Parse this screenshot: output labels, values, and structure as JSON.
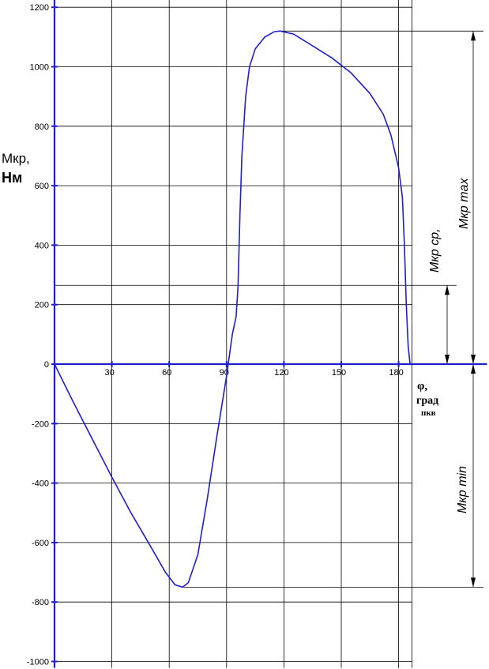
{
  "chart_data": {
    "type": "line",
    "x_range": [
      0,
      187
    ],
    "y_range": [
      -1000,
      1200
    ],
    "x_ticks": [
      30,
      60,
      90,
      120,
      150,
      180
    ],
    "y_ticks": [
      1200,
      1000,
      800,
      600,
      400,
      200,
      0,
      -200,
      -400,
      -600,
      -800,
      -1000
    ],
    "x_tick_labels": [
      "30",
      "60",
      "90",
      "120",
      "150",
      "180"
    ],
    "y_tick_labels": [
      "1200",
      "1000",
      "800",
      "600",
      "400",
      "200",
      "0",
      "-200",
      "-400",
      "-600",
      "-800",
      "-1000"
    ],
    "ylabel_line1": "Мкр,",
    "ylabel_line2": "Нм",
    "xlabel_line1": "φ,",
    "xlabel_line2": "град",
    "xlabel_line3": "пкв",
    "series": [
      {
        "color": "#1f1fcc",
        "points": [
          [
            0,
            0
          ],
          [
            10,
            -130
          ],
          [
            20,
            -255
          ],
          [
            30,
            -380
          ],
          [
            40,
            -500
          ],
          [
            50,
            -610
          ],
          [
            58,
            -700
          ],
          [
            63,
            -742
          ],
          [
            67,
            -750
          ],
          [
            70,
            -735
          ],
          [
            75,
            -640
          ],
          [
            80,
            -450
          ],
          [
            85,
            -240
          ],
          [
            90,
            -40
          ],
          [
            93,
            100
          ],
          [
            95,
            160
          ],
          [
            96,
            260
          ],
          [
            97,
            500
          ],
          [
            98,
            700
          ],
          [
            100,
            900
          ],
          [
            102,
            1000
          ],
          [
            105,
            1060
          ],
          [
            110,
            1100
          ],
          [
            115,
            1118
          ],
          [
            118,
            1120
          ],
          [
            125,
            1110
          ],
          [
            135,
            1070
          ],
          [
            145,
            1030
          ],
          [
            155,
            980
          ],
          [
            165,
            910
          ],
          [
            172,
            840
          ],
          [
            176,
            770
          ],
          [
            180,
            660
          ],
          [
            182,
            560
          ],
          [
            183,
            400
          ],
          [
            184,
            200
          ],
          [
            185,
            60
          ],
          [
            186,
            0
          ]
        ]
      }
    ],
    "reference_lines": {
      "Mkr_max": 1120,
      "Mkr_avg": 265,
      "Mkr_min": -750
    },
    "annotations": [
      "Мкр max",
      "Мкр ср,",
      "Мкр min"
    ],
    "grid": true
  }
}
